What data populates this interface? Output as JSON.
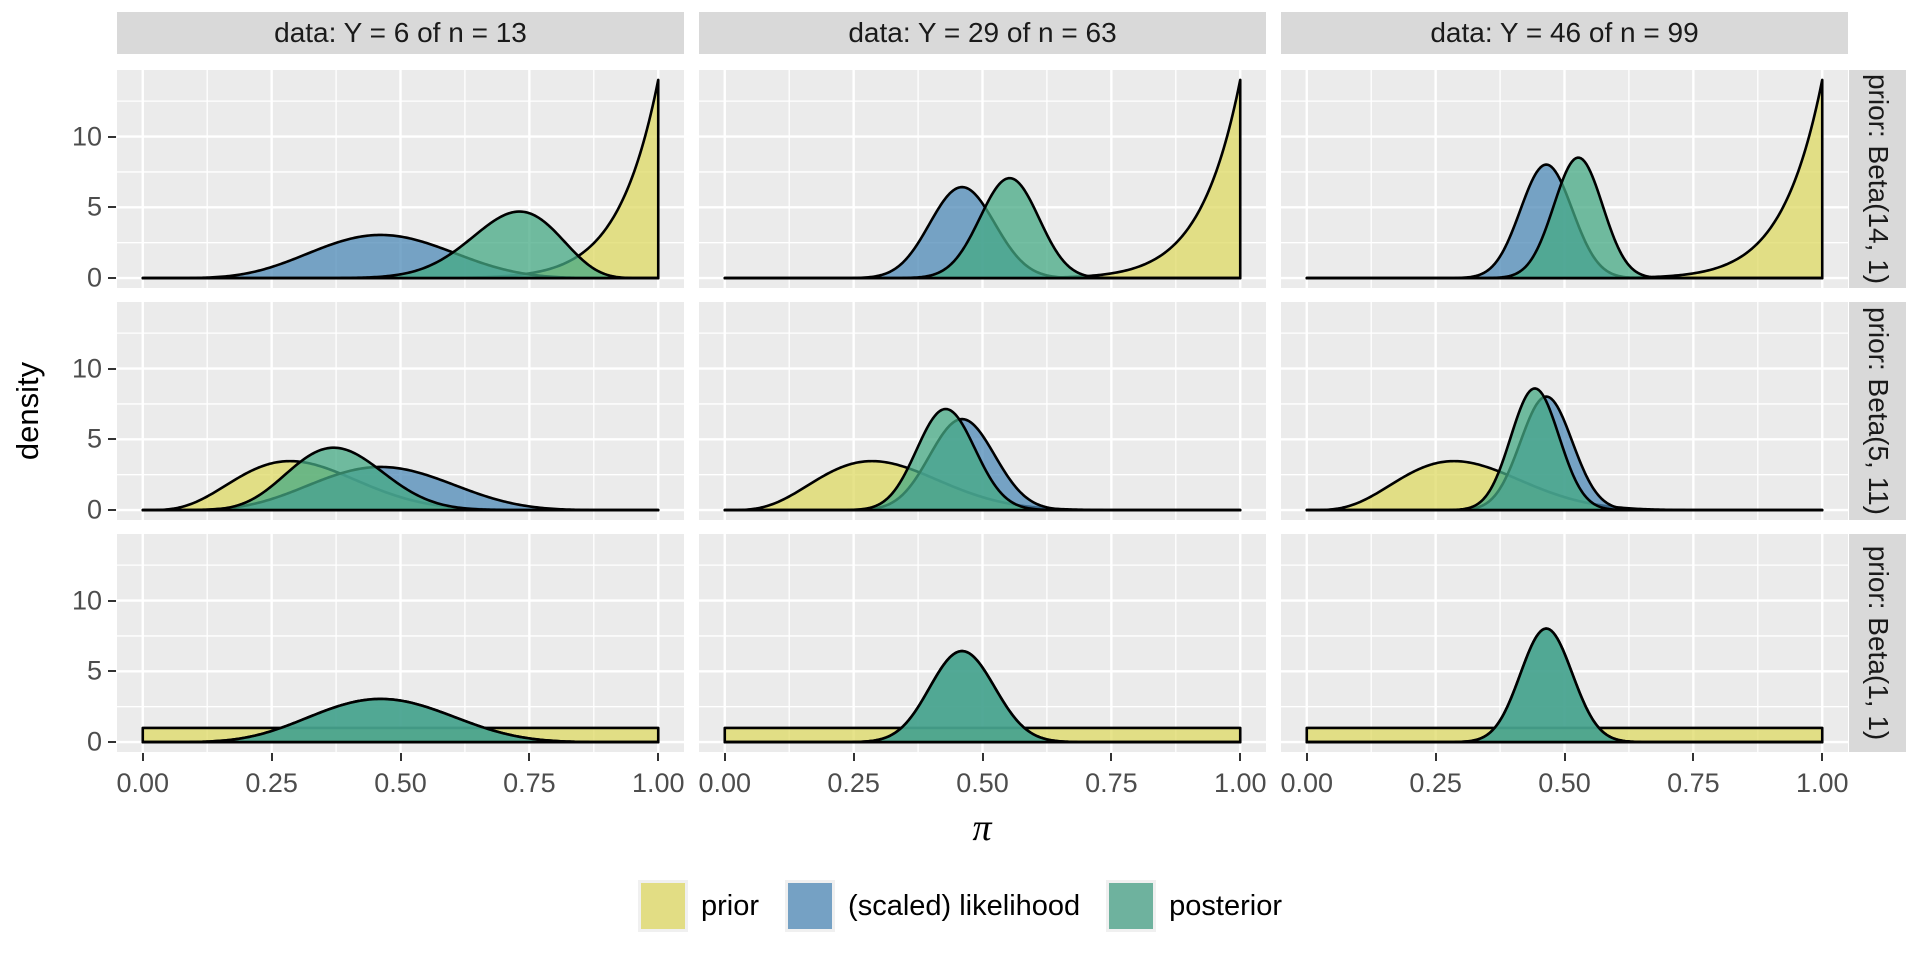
{
  "chart_data": {
    "type": "area",
    "subtype": "faceted-beta-density",
    "title": "",
    "xlabel": "π",
    "ylabel": "density",
    "x_tick_labels": [
      "0.00",
      "0.25",
      "0.50",
      "0.75",
      "1.00"
    ],
    "x_tick_values": [
      0,
      0.25,
      0.5,
      0.75,
      1
    ],
    "x_minor_values": [
      0.125,
      0.375,
      0.625,
      0.875
    ],
    "y_tick_labels": [
      "0",
      "5",
      "10"
    ],
    "y_tick_values": [
      0,
      5,
      10
    ],
    "y_minor_values": [
      2.5,
      7.5,
      12.5
    ],
    "xlim": [
      -0.05,
      1.05
    ],
    "ylim": [
      -0.7,
      14.7
    ],
    "grid": true,
    "legend_position": "bottom",
    "columns": [
      {
        "label": "data: Y = 6 of n = 13",
        "Y": 6,
        "n": 13
      },
      {
        "label": "data: Y = 29 of n = 63",
        "Y": 29,
        "n": 63
      },
      {
        "label": "data: Y = 46 of n = 99",
        "Y": 46,
        "n": 99
      }
    ],
    "rows": [
      {
        "label": "prior: Beta(14, 1)",
        "prior_beta": [
          14,
          1
        ]
      },
      {
        "label": "prior: Beta(5, 11)",
        "prior_beta": [
          5,
          11
        ]
      },
      {
        "label": "prior: Beta(1, 1)",
        "prior_beta": [
          1,
          1
        ]
      }
    ],
    "panels": [
      {
        "row": 0,
        "col": 0,
        "prior": [
          14,
          1
        ],
        "likelihood": [
          7,
          8
        ],
        "posterior": [
          20,
          8
        ]
      },
      {
        "row": 0,
        "col": 1,
        "prior": [
          14,
          1
        ],
        "likelihood": [
          30,
          35
        ],
        "posterior": [
          43,
          35
        ]
      },
      {
        "row": 0,
        "col": 2,
        "prior": [
          14,
          1
        ],
        "likelihood": [
          47,
          54
        ],
        "posterior": [
          60,
          54
        ]
      },
      {
        "row": 1,
        "col": 0,
        "prior": [
          5,
          11
        ],
        "likelihood": [
          7,
          8
        ],
        "posterior": [
          11,
          18
        ]
      },
      {
        "row": 1,
        "col": 1,
        "prior": [
          5,
          11
        ],
        "likelihood": [
          30,
          35
        ],
        "posterior": [
          34,
          45
        ]
      },
      {
        "row": 1,
        "col": 2,
        "prior": [
          5,
          11
        ],
        "likelihood": [
          47,
          54
        ],
        "posterior": [
          51,
          64
        ]
      },
      {
        "row": 2,
        "col": 0,
        "prior": [
          1,
          1
        ],
        "likelihood": [
          7,
          8
        ],
        "posterior": [
          7,
          8
        ]
      },
      {
        "row": 2,
        "col": 1,
        "prior": [
          1,
          1
        ],
        "likelihood": [
          30,
          35
        ],
        "posterior": [
          30,
          35
        ]
      },
      {
        "row": 2,
        "col": 2,
        "prior": [
          1,
          1
        ],
        "likelihood": [
          47,
          54
        ],
        "posterior": [
          47,
          54
        ]
      }
    ],
    "legend": [
      {
        "label": "prior",
        "color": "#e2dd84"
      },
      {
        "label": "(scaled) likelihood",
        "color": "#75a1c4"
      },
      {
        "label": "posterior",
        "color": "#6eb29e"
      }
    ],
    "colors": {
      "panel_background": "#ebebeb",
      "gridline": "#ffffff",
      "strip_background": "#d9d9d9",
      "strip_text": "#1a1a1a",
      "axis_text": "#4d4d4d",
      "tick_mark": "#333333",
      "curve_outline": "#000000",
      "prior_fill": "rgba(222,217,99,0.75)",
      "likelihood_fill": "rgba(78,137,183,0.75)",
      "posterior_fill": "rgba(69,170,132,0.75)"
    }
  }
}
